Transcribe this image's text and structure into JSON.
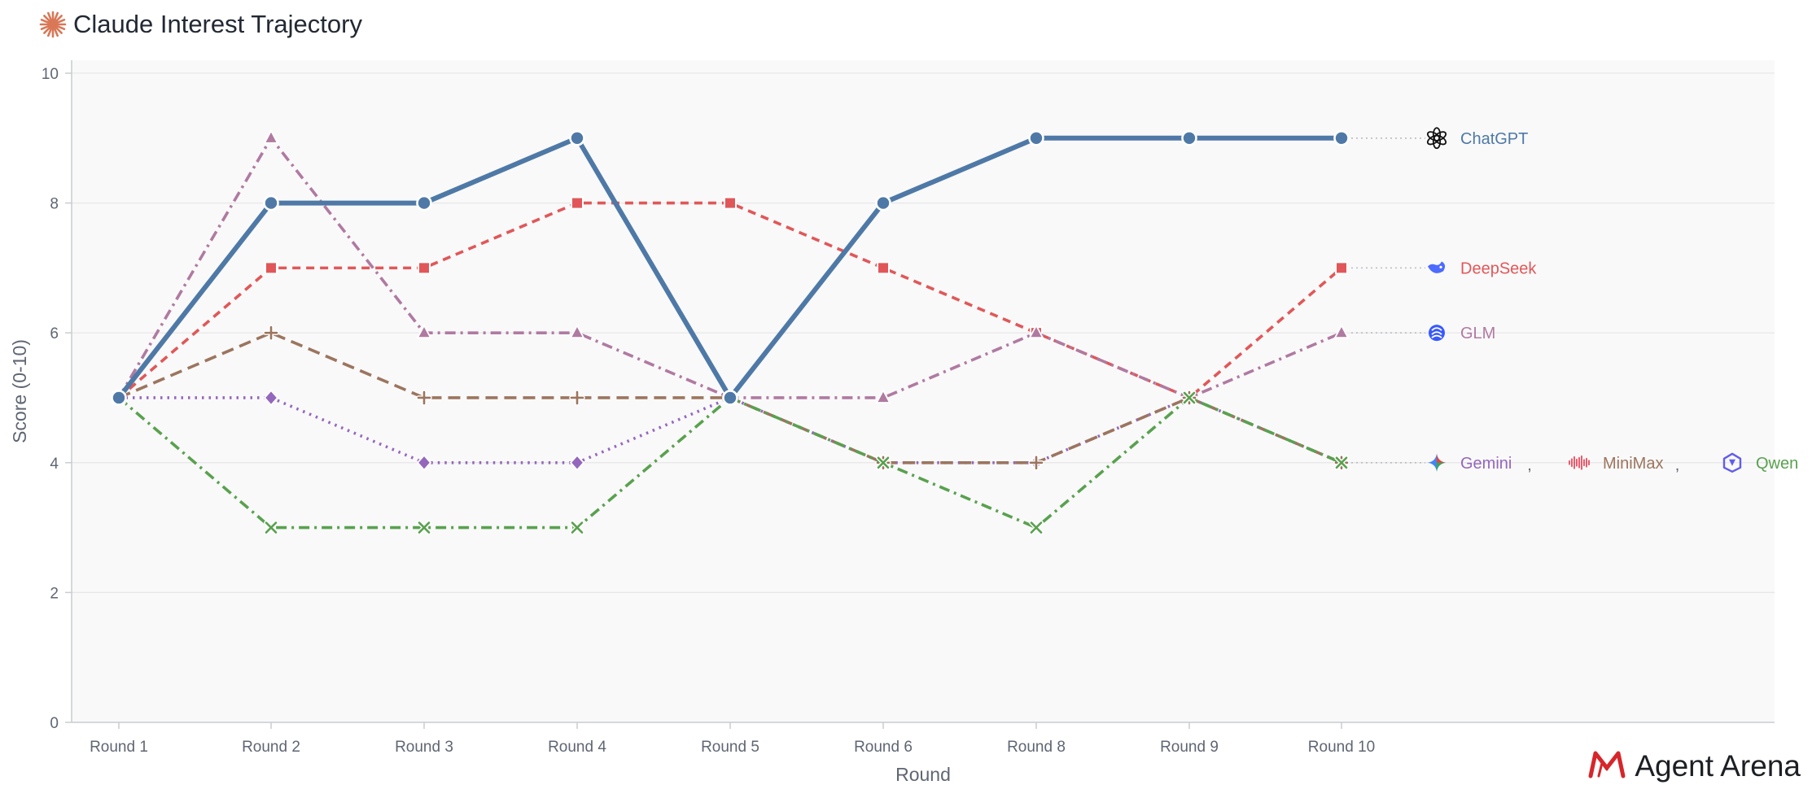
{
  "header": {
    "title": "Claude Interest Trajectory",
    "logo_icon": "claude-sunburst-icon"
  },
  "branding": {
    "name": "Agent Arena",
    "logo_icon": "agent-arena-logo-icon",
    "color": "#d6262b"
  },
  "chart_data": {
    "type": "line",
    "title": "Claude Interest Trajectory",
    "xlabel": "Round",
    "ylabel": "Score (0-10)",
    "categories": [
      "Round 1",
      "Round 2",
      "Round 3",
      "Round 4",
      "Round 5",
      "Round 6",
      "Round 8",
      "Round 9",
      "Round 10"
    ],
    "ylim": [
      0,
      10.2
    ],
    "yticks": [
      0,
      2,
      4,
      6,
      8,
      10
    ],
    "grid": "horizontal",
    "legend": "end-of-line labels, right side",
    "series": [
      {
        "name": "ChatGPT",
        "values": [
          5,
          8,
          8,
          9,
          5,
          8,
          9,
          9,
          9
        ],
        "color": "#4e79a7",
        "dash": "solid",
        "marker": "circle",
        "icon": "openai-logo-icon",
        "emphasis": true
      },
      {
        "name": "DeepSeek",
        "values": [
          5,
          7,
          7,
          8,
          8,
          7,
          6,
          5,
          7
        ],
        "color": "#e15759",
        "dash": "dashed",
        "marker": "square",
        "icon": "deepseek-whale-icon"
      },
      {
        "name": "GLM",
        "values": [
          5,
          9,
          6,
          6,
          5,
          5,
          6,
          5,
          6
        ],
        "color": "#b07aa1",
        "dash": "dash-dot",
        "marker": "triangle",
        "icon": "glm-logo-icon"
      },
      {
        "name": "Gemini",
        "values": [
          5,
          5,
          4,
          4,
          5,
          4,
          4,
          5,
          4
        ],
        "color": "#9467bd",
        "dash": "dotted",
        "marker": "diamond",
        "icon": "gemini-sparkle-icon"
      },
      {
        "name": "MiniMax",
        "values": [
          5,
          6,
          5,
          5,
          5,
          4,
          4,
          5,
          4
        ],
        "color": "#9c755f",
        "dash": "long-dash",
        "marker": "plus",
        "icon": "minimax-wave-icon"
      },
      {
        "name": "Qwen",
        "values": [
          5,
          3,
          3,
          3,
          5,
          4,
          3,
          5,
          4
        ],
        "color": "#59a14f",
        "dash": "dash-dot",
        "marker": "x",
        "icon": "qwen-logo-icon"
      }
    ]
  }
}
